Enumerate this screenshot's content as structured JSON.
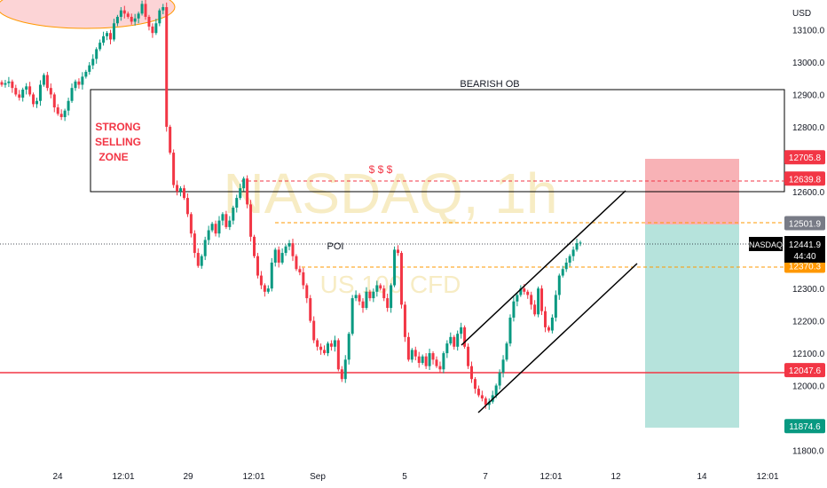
{
  "chart_data": {
    "type": "candlestick",
    "symbol": "NASDAQ",
    "currency": "USD",
    "watermark": "NASDAQ, 1h",
    "watermark_sub": "US 100 CFD",
    "y_ticks": [
      13100.0,
      13000.0,
      12900.0,
      12800.0,
      12600.0,
      12300.0,
      12200.0,
      12100.0,
      12000.0,
      11800.0
    ],
    "x_ticks": [
      "24",
      "12:01",
      "29",
      "12:01",
      "Sep",
      "5",
      "7",
      "12:01",
      "12",
      "14",
      "12:01"
    ],
    "ylim": [
      11770,
      13220
    ],
    "last_price": 12441.9,
    "countdown": "44:40",
    "levels": [
      {
        "name": "stop",
        "value": 12705.8,
        "label": "12705.8",
        "color": "#f23645"
      },
      {
        "name": "liquidity",
        "value": 12639.8,
        "label": "12639.8",
        "color": "#f23645"
      },
      {
        "name": "entry",
        "value": 12501.9,
        "label": "12501.9",
        "color": "#787b86"
      },
      {
        "name": "lower-dashed",
        "value": 12370.3,
        "label": "12370.3",
        "color": "#ff9800"
      },
      {
        "name": "support",
        "value": 12047.6,
        "label": "12047.6",
        "color": "#f23645"
      },
      {
        "name": "target",
        "value": 11874.6,
        "label": "11874.6",
        "color": "#089981"
      }
    ],
    "annotations": {
      "bearish_ob": "BEARISH OB",
      "strong_selling_1": "STRONG",
      "strong_selling_2": "SELLING",
      "strong_selling_3": "ZONE",
      "dollars": "$ $ $",
      "poi": "POI"
    },
    "closes": [
      12930,
      12935,
      12940,
      12920,
      12900,
      12890,
      12915,
      12925,
      12900,
      12870,
      12880,
      12930,
      12960,
      12920,
      12900,
      12860,
      12840,
      12830,
      12850,
      12880,
      12920,
      12940,
      12930,
      12955,
      12970,
      12990,
      13010,
      13040,
      13060,
      13080,
      13090,
      13070,
      13120,
      13140,
      13160,
      13150,
      13140,
      13125,
      13135,
      13150,
      13180,
      13140,
      13110,
      13090,
      13120,
      13160,
      13170,
      12800,
      12720,
      12620,
      12600,
      12610,
      12580,
      12530,
      12470,
      12410,
      12370,
      12400,
      12450,
      12480,
      12500,
      12470,
      12510,
      12530,
      12490,
      12510,
      12550,
      12580,
      12610,
      12640,
      12560,
      12460,
      12400,
      12340,
      12310,
      12290,
      12300,
      12380,
      12420,
      12380,
      12410,
      12430,
      12440,
      12400,
      12360,
      12350,
      12310,
      12270,
      12200,
      12140,
      12120,
      12110,
      12100,
      12130,
      12120,
      12140,
      12050,
      12020,
      12080,
      12160,
      12270,
      12280,
      12260,
      12240,
      12290,
      12270,
      12290,
      12310,
      12300,
      12270,
      12240,
      12310,
      12420,
      12410,
      12250,
      12150,
      12080,
      12110,
      12090,
      12070,
      12090,
      12060,
      12100,
      12080,
      12060,
      12050,
      12100,
      12130,
      12150,
      12120,
      12160,
      12180,
      12120,
      12060,
      12020,
      11990,
      11970,
      11960,
      11940,
      11950,
      11970,
      12000,
      12040,
      12080,
      12130,
      12210,
      12260,
      12280,
      12300,
      12290,
      12280,
      12250,
      12220,
      12300,
      12230,
      12180,
      12170,
      12210,
      12280,
      12340,
      12360,
      12380,
      12400,
      12420,
      12440,
      12442
    ]
  }
}
